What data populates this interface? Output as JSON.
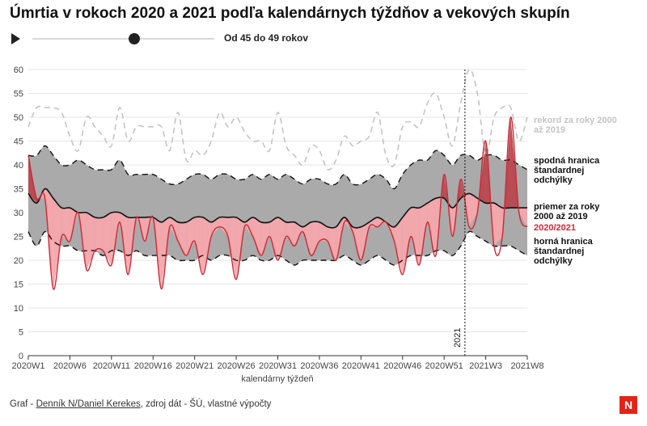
{
  "title": "Úmrtia v rokoch 2020 a 2021 podľa kalendárnych týždňov a vekových skupín",
  "slider": {
    "label": "Od 45 do 49 rokov",
    "value_fraction": 0.56
  },
  "footer": {
    "prefix": "Graf - ",
    "link": "Denník N/Daniel Kerekes",
    "suffix": ", zdroj dát - ŠÚ, vlastné výpočty"
  },
  "logo_text": "N",
  "colors": {
    "band": "#aaaaaa",
    "record": "#c4c4c4",
    "mean": "#111111",
    "current": "#cc2936",
    "below_fill": "#f4a6ab",
    "above_fill": "#b9464e",
    "brand": "#e2231a"
  },
  "chart_data": {
    "type": "area",
    "xlabel": "kalendárny týždeň",
    "ylim": [
      0,
      60
    ],
    "yticks": [
      0,
      5,
      10,
      15,
      20,
      25,
      30,
      35,
      40,
      45,
      50,
      55,
      60
    ],
    "x_tick_labels": [
      "2020W1",
      "2020W6",
      "2020W11",
      "2020W16",
      "2020W21",
      "2020W26",
      "2020W31",
      "2020W36",
      "2020W41",
      "2020W46",
      "2020W51",
      "2021W3",
      "2021W8"
    ],
    "year_marker": {
      "label": "2021",
      "after": "2020W53"
    },
    "x": [
      "2020W1",
      "2020W2",
      "2020W3",
      "2020W4",
      "2020W5",
      "2020W6",
      "2020W7",
      "2020W8",
      "2020W9",
      "2020W10",
      "2020W11",
      "2020W12",
      "2020W13",
      "2020W14",
      "2020W15",
      "2020W16",
      "2020W17",
      "2020W18",
      "2020W19",
      "2020W20",
      "2020W21",
      "2020W22",
      "2020W23",
      "2020W24",
      "2020W25",
      "2020W26",
      "2020W27",
      "2020W28",
      "2020W29",
      "2020W30",
      "2020W31",
      "2020W32",
      "2020W33",
      "2020W34",
      "2020W35",
      "2020W36",
      "2020W37",
      "2020W38",
      "2020W39",
      "2020W40",
      "2020W41",
      "2020W42",
      "2020W43",
      "2020W44",
      "2020W45",
      "2020W46",
      "2020W47",
      "2020W48",
      "2020W49",
      "2020W50",
      "2020W51",
      "2020W52",
      "2020W53",
      "2021W1",
      "2021W2",
      "2021W3",
      "2021W4",
      "2021W5",
      "2021W6",
      "2021W7",
      "2021W8"
    ],
    "series": [
      {
        "name": "rekord za roky 2000 až 2019",
        "values": [
          48,
          52,
          52,
          52,
          51,
          46,
          43,
          50,
          48,
          46,
          44,
          52,
          45,
          48,
          48,
          48,
          48,
          43,
          51,
          41,
          43,
          42,
          45,
          51,
          48,
          50,
          47,
          45,
          45,
          43,
          51,
          44,
          42,
          40,
          44,
          43,
          39,
          41,
          46,
          44,
          45,
          46,
          51,
          42,
          40,
          48,
          49,
          48,
          53,
          55,
          50,
          44,
          53,
          60,
          55,
          42,
          50,
          52,
          52,
          45,
          50
        ]
      },
      {
        "name": "spodná hranica štandardnej odchýlky",
        "values": [
          42,
          42,
          44,
          42,
          40,
          40,
          41,
          40,
          39,
          39,
          39,
          41,
          38,
          38,
          38,
          38,
          37,
          36,
          36,
          37,
          38,
          38,
          37,
          38,
          38,
          37,
          37,
          38,
          37,
          38,
          37,
          38,
          37,
          36,
          37,
          37,
          36,
          36,
          38,
          36,
          36,
          37,
          38,
          37,
          35,
          38,
          40,
          41,
          41,
          43,
          42,
          40,
          42,
          42,
          41,
          42,
          42,
          41,
          41,
          40,
          39
        ]
      },
      {
        "name": "priemer za roky 2000 až 2019",
        "values": [
          34,
          32,
          35,
          33,
          31,
          31,
          30,
          30,
          29,
          29,
          30,
          30,
          29,
          29,
          29,
          29,
          28,
          29,
          28,
          28,
          29,
          29,
          28,
          29,
          29,
          29,
          28,
          29,
          28,
          28,
          29,
          28,
          28,
          27,
          28,
          28,
          27,
          27,
          29,
          27,
          27,
          28,
          29,
          28,
          27,
          29,
          31,
          31,
          32,
          33,
          33,
          31,
          33,
          34,
          33,
          32,
          32,
          31,
          31,
          31,
          31
        ]
      },
      {
        "name": "horná hranica štandardnej odchýlky",
        "values": [
          26,
          23,
          26,
          24,
          23,
          23,
          22,
          22,
          22,
          21,
          22,
          22,
          21,
          22,
          21,
          21,
          21,
          21,
          20,
          20,
          20,
          21,
          20,
          21,
          21,
          20,
          20,
          21,
          20,
          20,
          21,
          20,
          19,
          20,
          20,
          20,
          20,
          20,
          21,
          20,
          19,
          20,
          21,
          20,
          19,
          20,
          21,
          21,
          21,
          22,
          22,
          21,
          23,
          26,
          25,
          24,
          23,
          23,
          23,
          22,
          21
        ]
      },
      {
        "name": "2020/2021",
        "values": [
          42,
          33,
          33,
          14,
          25,
          24,
          30,
          18,
          22,
          22,
          19,
          28,
          17,
          29,
          24,
          29,
          14,
          27,
          24,
          21,
          24,
          17,
          25,
          27,
          25,
          16,
          27,
          25,
          21,
          25,
          20,
          25,
          23,
          26,
          21,
          24,
          24,
          20,
          28,
          26,
          20,
          27,
          27,
          28,
          24,
          17,
          25,
          19,
          28,
          21,
          38,
          25,
          37,
          27,
          30,
          45,
          23,
          25,
          50,
          30,
          27
        ]
      }
    ]
  }
}
